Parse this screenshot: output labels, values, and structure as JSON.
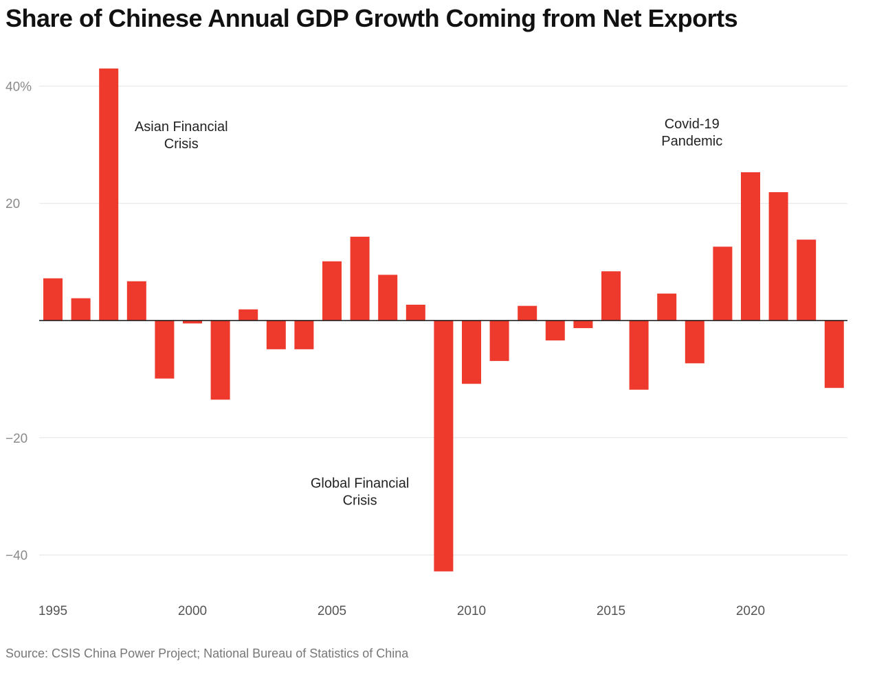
{
  "chart_data": {
    "type": "bar",
    "title": "Share of Chinese Annual GDP Growth Coming from Net Exports",
    "source": "Source: CSIS China Power Project; National Bureau of Statistics of China",
    "xlabel": "",
    "ylabel": "",
    "ylim": [
      -47,
      43
    ],
    "yticks": [
      {
        "value": 40,
        "label": "40%"
      },
      {
        "value": 20,
        "label": "20"
      },
      {
        "value": -20,
        "label": "−20"
      },
      {
        "value": -40,
        "label": "−40"
      }
    ],
    "xticks": [
      1995,
      2000,
      2005,
      2010,
      2015,
      2020
    ],
    "years": [
      1995,
      1996,
      1997,
      1998,
      1999,
      2000,
      2001,
      2002,
      2003,
      2004,
      2005,
      2006,
      2007,
      2008,
      2009,
      2010,
      2011,
      2012,
      2013,
      2014,
      2015,
      2016,
      2017,
      2018,
      2019,
      2020,
      2021,
      2022,
      2023
    ],
    "values": [
      7.2,
      3.8,
      43.0,
      6.7,
      -9.9,
      -0.5,
      -13.5,
      1.9,
      -4.9,
      -4.9,
      10.1,
      14.3,
      7.8,
      2.7,
      -42.8,
      -10.8,
      -6.9,
      2.5,
      -3.4,
      -1.3,
      8.4,
      -11.8,
      4.6,
      -7.3,
      12.6,
      25.3,
      21.9,
      13.8,
      -11.5
    ],
    "color": "#ee3a2d",
    "annotations": [
      {
        "lines": [
          "Asian Financial",
          "Crisis"
        ],
        "year": 1999.6,
        "value": 32.3
      },
      {
        "lines": [
          "Global Financial",
          "Crisis"
        ],
        "year": 2006.0,
        "value": -28.5
      },
      {
        "lines": [
          "Covid-19",
          "Pandemic"
        ],
        "year": 2017.9,
        "value": 32.8
      }
    ]
  }
}
